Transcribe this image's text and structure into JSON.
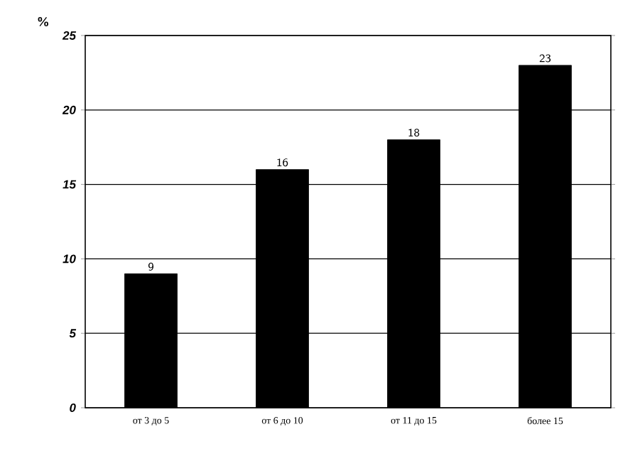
{
  "chart_data": {
    "type": "bar",
    "ylabel": "%",
    "categories": [
      "от 3 до 5",
      "от 6 до 10",
      "от 11 до 15",
      "более 15"
    ],
    "values": [
      9,
      16,
      18,
      23
    ],
    "color": "#000000",
    "ylim": [
      0,
      25
    ],
    "yticks": [
      0,
      5,
      10,
      15,
      20,
      25
    ],
    "grid": "y",
    "data_labels": true
  }
}
